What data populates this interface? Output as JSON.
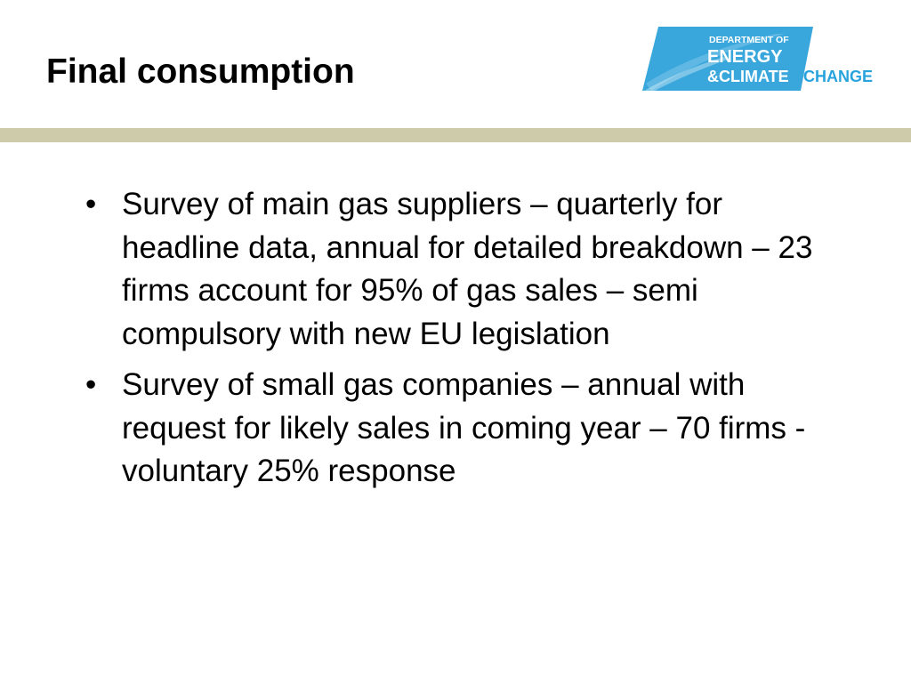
{
  "slide": {
    "title": "Final consumption",
    "logo": {
      "line1": "DEPARTMENT OF",
      "line2": "ENERGY",
      "line3": "&CLIMATE",
      "line3b": "CHANGE",
      "colors": {
        "band": "#3aa7dc",
        "white_text": "#ffffff",
        "blue_text": "#29a3dd"
      }
    },
    "rule_color": "#cdcba9",
    "bullets": [
      {
        "marker": "•",
        "text": "Survey of main gas suppliers – quarterly for headline data, annual for detailed breakdown – 23 firms account for 95% of gas sales – semi compulsory with new EU legislation"
      },
      {
        "marker": "•",
        "text": "Survey of small gas companies – annual with request for likely sales in coming year – 70 firms - voluntary 25% response"
      }
    ]
  }
}
